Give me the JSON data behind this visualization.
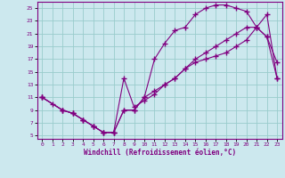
{
  "xlabel": "Windchill (Refroidissement éolien,°C)",
  "bg_color": "#cce8ee",
  "line_color": "#800080",
  "grid_color": "#99cccc",
  "xlim": [
    -0.5,
    23.5
  ],
  "ylim": [
    4.5,
    26.0
  ],
  "xticks": [
    0,
    1,
    2,
    3,
    4,
    5,
    6,
    7,
    8,
    9,
    10,
    11,
    12,
    13,
    14,
    15,
    16,
    17,
    18,
    19,
    20,
    21,
    22,
    23
  ],
  "yticks": [
    5,
    7,
    9,
    11,
    13,
    15,
    17,
    19,
    21,
    23,
    25
  ],
  "line1_x": [
    0,
    1,
    2,
    3,
    4,
    5,
    6,
    7,
    8,
    9,
    10,
    11,
    12,
    13,
    14,
    15,
    16,
    17,
    18,
    19,
    20,
    21,
    22,
    23
  ],
  "line1_y": [
    11,
    10,
    9,
    8.5,
    7.5,
    6.5,
    5.5,
    5.5,
    9,
    9,
    11,
    12,
    13,
    14,
    15.5,
    16.5,
    17,
    17.5,
    18,
    19,
    20,
    22,
    24,
    14
  ],
  "line2_x": [
    0,
    2,
    3,
    4,
    5,
    6,
    7,
    8,
    9,
    10,
    11,
    12,
    13,
    14,
    15,
    16,
    17,
    18,
    19,
    20,
    21,
    22,
    23
  ],
  "line2_y": [
    11,
    9,
    8.5,
    7.5,
    6.5,
    5.5,
    5.5,
    14,
    9.5,
    10.5,
    11.5,
    13,
    14,
    15.5,
    17,
    18,
    19,
    20,
    21,
    22,
    22,
    20.5,
    14
  ],
  "line3_x": [
    0,
    2,
    3,
    4,
    5,
    6,
    7,
    8,
    9,
    10,
    11,
    12,
    13,
    14,
    15,
    16,
    17,
    18,
    19,
    20,
    21,
    22,
    23
  ],
  "line3_y": [
    11,
    9,
    8.5,
    7.5,
    6.5,
    5.5,
    5.5,
    9,
    9,
    11,
    17,
    19.5,
    21.5,
    22,
    24,
    25,
    25.5,
    25.5,
    25,
    24.5,
    22,
    20.5,
    16.5
  ]
}
